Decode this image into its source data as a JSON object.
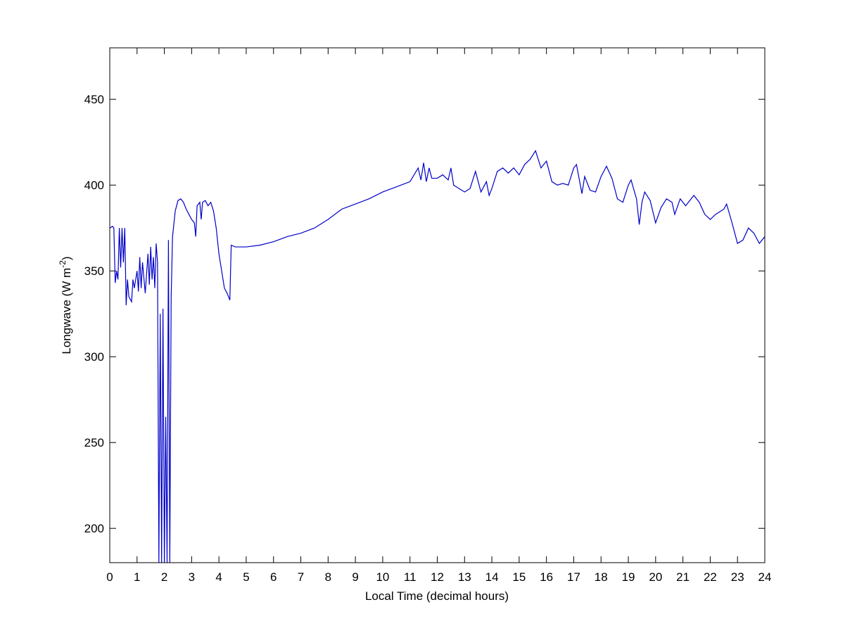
{
  "chart_data": {
    "type": "line",
    "xlabel": "Local Time (decimal hours)",
    "ylabel": {
      "text": "Longwave (W m",
      "superscript": "-2",
      "suffix": ")"
    },
    "x": [
      0,
      0.1,
      0.15,
      0.2,
      0.25,
      0.3,
      0.35,
      0.4,
      0.45,
      0.5,
      0.55,
      0.6,
      0.65,
      0.7,
      0.8,
      0.85,
      0.9,
      1.0,
      1.05,
      1.1,
      1.15,
      1.2,
      1.3,
      1.4,
      1.45,
      1.5,
      1.55,
      1.6,
      1.65,
      1.7,
      1.75,
      1.8,
      1.85,
      1.9,
      1.95,
      2.0,
      2.05,
      2.1,
      2.15,
      2.2,
      2.25,
      2.3,
      2.4,
      2.5,
      2.6,
      2.7,
      2.8,
      2.9,
      3.0,
      3.1,
      3.15,
      3.2,
      3.3,
      3.35,
      3.4,
      3.5,
      3.6,
      3.7,
      3.8,
      3.9,
      4.0,
      4.1,
      4.2,
      4.3,
      4.4,
      4.45,
      4.6,
      5.0,
      5.5,
      6.0,
      6.5,
      7.0,
      7.5,
      8.0,
      8.5,
      9.0,
      9.5,
      10.0,
      10.5,
      11.0,
      11.3,
      11.4,
      11.5,
      11.6,
      11.7,
      11.8,
      12.0,
      12.2,
      12.4,
      12.5,
      12.6,
      12.8,
      13.0,
      13.2,
      13.4,
      13.6,
      13.8,
      13.9,
      14.0,
      14.2,
      14.4,
      14.6,
      14.8,
      15.0,
      15.2,
      15.4,
      15.6,
      15.8,
      16.0,
      16.2,
      16.4,
      16.6,
      16.8,
      17.0,
      17.1,
      17.3,
      17.4,
      17.6,
      17.8,
      18.0,
      18.2,
      18.4,
      18.6,
      18.8,
      19.0,
      19.1,
      19.3,
      19.4,
      19.5,
      19.6,
      19.8,
      20.0,
      20.2,
      20.4,
      20.6,
      20.7,
      20.9,
      21.1,
      21.4,
      21.6,
      21.8,
      22.0,
      22.2,
      22.5,
      22.6,
      22.8,
      23.0,
      23.2,
      23.4,
      23.6,
      23.8,
      24.0
    ],
    "series": [
      {
        "color": "#0000c8",
        "values": [
          375,
          376,
          375,
          343,
          350,
          345,
          375,
          352,
          375,
          355,
          375,
          330,
          345,
          335,
          332,
          345,
          340,
          350,
          338,
          358,
          340,
          355,
          337,
          360,
          342,
          364,
          345,
          358,
          340,
          366,
          355,
          180,
          325,
          180,
          328,
          180,
          265,
          180,
          368,
          180,
          335,
          370,
          385,
          391,
          392,
          390,
          386,
          383,
          380,
          378,
          370,
          388,
          390,
          380,
          390,
          391,
          388,
          390,
          385,
          375,
          360,
          350,
          340,
          337,
          333,
          365,
          364,
          364,
          365,
          367,
          370,
          372,
          375,
          380,
          386,
          389,
          392,
          396,
          399,
          402,
          410,
          403,
          413,
          402,
          410,
          404,
          404,
          406,
          403,
          410,
          400,
          398,
          396,
          398,
          408,
          396,
          402,
          394,
          398,
          408,
          410,
          407,
          410,
          406,
          412,
          415,
          420,
          410,
          414,
          402,
          400,
          401,
          400,
          410,
          412,
          395,
          405,
          397,
          396,
          405,
          411,
          404,
          392,
          390,
          400,
          403,
          392,
          377,
          390,
          396,
          391,
          378,
          387,
          392,
          390,
          383,
          392,
          388,
          394,
          390,
          383,
          380,
          383,
          386,
          389,
          378,
          366,
          368,
          375,
          372,
          366,
          370
        ]
      }
    ],
    "xlim": [
      0,
      24
    ],
    "xticks": [
      0,
      1,
      2,
      3,
      4,
      5,
      6,
      7,
      8,
      9,
      10,
      11,
      12,
      13,
      14,
      15,
      16,
      17,
      18,
      19,
      20,
      21,
      22,
      23,
      24
    ],
    "ylim": [
      180,
      480
    ],
    "yticks": [
      200,
      250,
      300,
      350,
      400,
      450
    ],
    "grid": false
  }
}
